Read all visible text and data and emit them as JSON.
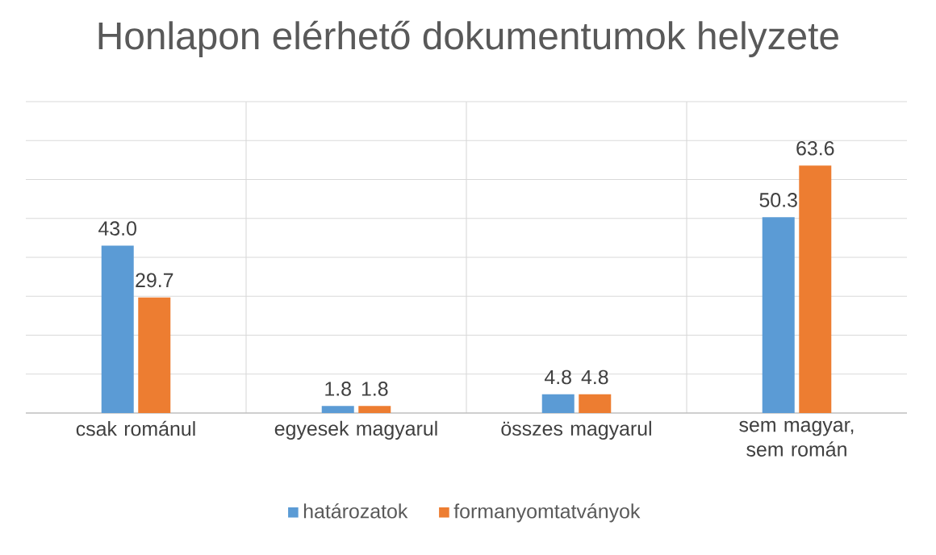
{
  "chart_data": {
    "type": "bar",
    "title": "Honlapon elérhető dokumentumok helyzete",
    "categories": [
      "csak románul",
      "egyesek magyarul",
      "összes magyarul",
      "sem magyar, sem román"
    ],
    "series": [
      {
        "name": "határozatok",
        "color": "#5b9bd5",
        "values": [
          43.0,
          1.8,
          4.8,
          50.3
        ],
        "value_labels": [
          "43.0",
          "1.8",
          "4.8",
          "50.3"
        ]
      },
      {
        "name": "formanyomtatványok",
        "color": "#ed7d31",
        "values": [
          29.7,
          1.8,
          4.8,
          63.6
        ],
        "value_labels": [
          "29.7",
          "1.8",
          "4.8",
          "63.6"
        ]
      }
    ],
    "ylim": [
      0,
      80
    ],
    "yticks": [
      {
        "value": 0,
        "label": null
      },
      {
        "value": 10,
        "label": null
      },
      {
        "value": 20,
        "label": null
      },
      {
        "value": 30,
        "label": null
      },
      {
        "value": 40,
        "label": null
      },
      {
        "value": 50,
        "label": null
      },
      {
        "value": 60,
        "label": null
      },
      {
        "value": 70,
        "label": null
      },
      {
        "value": 80,
        "label": null
      }
    ],
    "tick_labels": "x",
    "grid": true,
    "legend": "bottom"
  }
}
